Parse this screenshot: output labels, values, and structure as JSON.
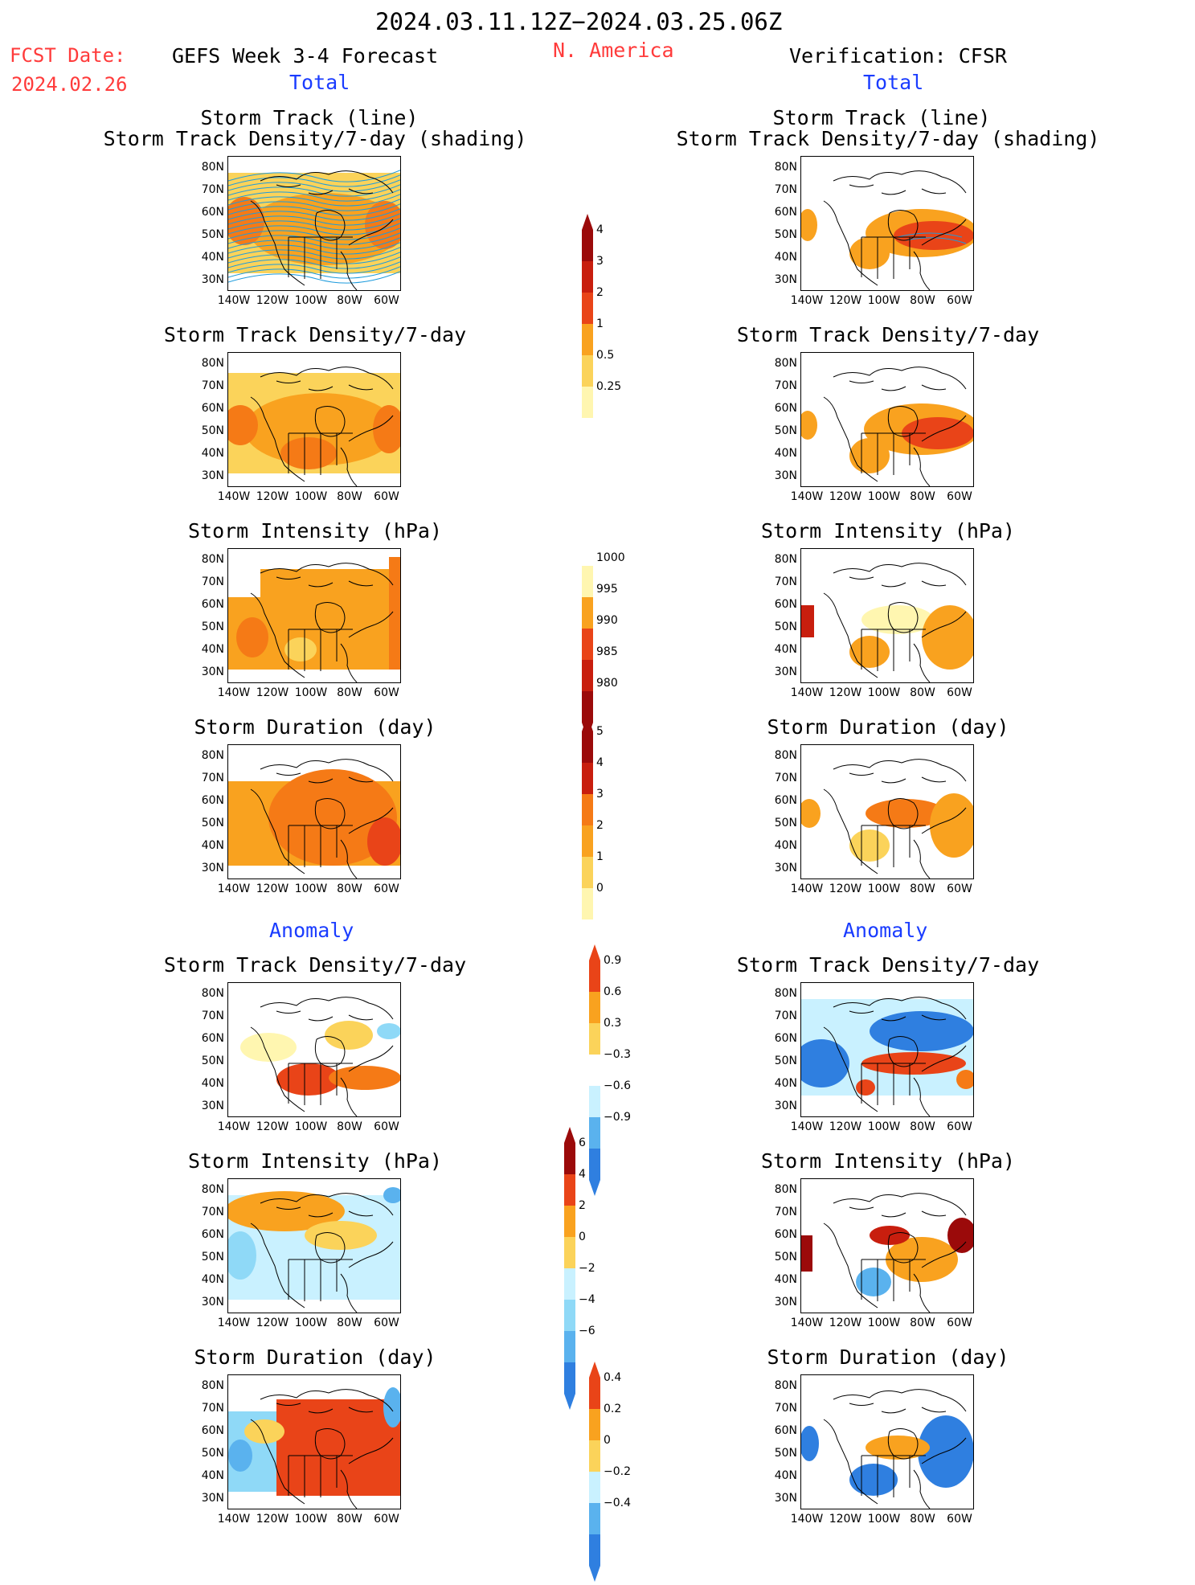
{
  "header": {
    "date_range": "2024.03.11.12Z−2024.03.25.06Z",
    "region": "N. America",
    "fcst_label": "FCST Date:",
    "fcst_date": "2024.02.26",
    "left_title": "GEFS Week 3-4 Forecast",
    "right_title": "Verification: CFSR",
    "left_total": "Total",
    "right_total": "Total",
    "left_anomaly": "Anomaly",
    "right_anomaly": "Anomaly"
  },
  "panels": {
    "track_line": "Storm Track (line)",
    "track_shade": "Storm Track Density/7-day (shading)",
    "density": "Storm Track Density/7-day",
    "intensity": "Storm Intensity (hPa)",
    "duration": "Storm Duration (day)"
  },
  "axes": {
    "lat": [
      "80N",
      "70N",
      "60N",
      "50N",
      "40N",
      "30N"
    ],
    "lon": [
      "140W",
      "120W",
      "100W",
      "80W",
      "60W"
    ]
  },
  "colorbars": {
    "density_total": [
      "4",
      "3",
      "2",
      "1",
      "0.5",
      "0.25"
    ],
    "intensity_total": [
      "1000",
      "995",
      "990",
      "985",
      "980"
    ],
    "duration_total": [
      "5",
      "4",
      "3",
      "2",
      "1",
      "0"
    ],
    "density_anom": [
      "0.9",
      "0.6",
      "0.3",
      "−0.3",
      "−0.6",
      "−0.9"
    ],
    "intensity_anom": [
      "6",
      "4",
      "2",
      "0",
      "−2",
      "−4",
      "−6"
    ],
    "duration_anom": [
      "0.4",
      "0.2",
      "0",
      "−0.2",
      "−0.4"
    ]
  },
  "colors": {
    "warm": [
      "#fff6b0",
      "#fbd35a",
      "#f9a21f",
      "#f57a16",
      "#e94418",
      "#c81e0e",
      "#9b0a0a"
    ],
    "cool": [
      "#c9f1ff",
      "#8fd9f7",
      "#5ab2ee",
      "#2f7fe0",
      "#1755c9"
    ],
    "track_line": "#1e9bdc",
    "header_red": "#ff3b3b",
    "header_blue": "#1a3cff"
  }
}
